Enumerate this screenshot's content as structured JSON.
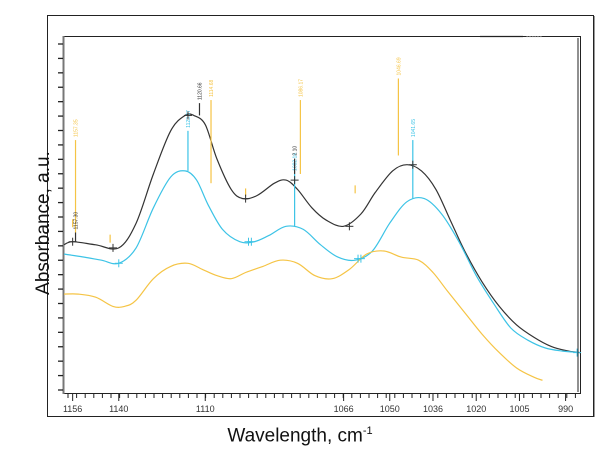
{
  "chart_data": {
    "type": "line",
    "title": "",
    "xlabel": "Wavelength, cm",
    "xlabel_superscript": "-1",
    "ylabel": "Absorbance, a.u.",
    "x_reversed": true,
    "xlim": [
      1163,
      984
    ],
    "ylim": [
      0,
      1
    ],
    "x_ticks": [
      {
        "label": "1156",
        "value": 1160
      },
      {
        "label": "1140",
        "value": 1144
      },
      {
        "label": "1110",
        "value": 1114
      },
      {
        "label": "1066",
        "value": 1066
      },
      {
        "label": "1050",
        "value": 1050
      },
      {
        "label": "1036",
        "value": 1035
      },
      {
        "label": "1020",
        "value": 1020
      },
      {
        "label": "1005",
        "value": 1005
      },
      {
        "label": "990",
        "value": 989
      }
    ],
    "y_tick_count": 25,
    "grid": false,
    "series": [
      {
        "name": "black-spectrum",
        "color": "#333333",
        "x": [
          1163,
          1160,
          1152,
          1144,
          1138,
          1132,
          1126,
          1121,
          1118,
          1114,
          1110,
          1105,
          1101,
          1096,
          1090,
          1086,
          1082,
          1077,
          1072,
          1066,
          1060,
          1055,
          1049,
          1044,
          1039,
          1034,
          1029,
          1024,
          1018,
          1012,
          1006,
          1000,
          994,
          988,
          984
        ],
        "y": [
          0.4,
          0.41,
          0.4,
          0.39,
          0.47,
          0.63,
          0.77,
          0.82,
          0.82,
          0.79,
          0.68,
          0.58,
          0.55,
          0.56,
          0.6,
          0.61,
          0.58,
          0.52,
          0.48,
          0.46,
          0.5,
          0.57,
          0.64,
          0.66,
          0.64,
          0.58,
          0.48,
          0.38,
          0.28,
          0.2,
          0.14,
          0.1,
          0.07,
          0.055,
          0.05
        ]
      },
      {
        "name": "cyan-spectrum",
        "color": "#3cc3e6",
        "x": [
          1163,
          1156,
          1150,
          1144,
          1138,
          1132,
          1126,
          1121,
          1117,
          1113,
          1108,
          1102,
          1097,
          1092,
          1086,
          1080,
          1074,
          1068,
          1062,
          1056,
          1050,
          1044,
          1038,
          1032,
          1026,
          1020,
          1014,
          1008,
          1002,
          996,
          990,
          984
        ],
        "y": [
          0.37,
          0.36,
          0.35,
          0.34,
          0.39,
          0.52,
          0.62,
          0.64,
          0.61,
          0.53,
          0.45,
          0.41,
          0.41,
          0.43,
          0.46,
          0.45,
          0.4,
          0.36,
          0.35,
          0.38,
          0.47,
          0.54,
          0.55,
          0.5,
          0.41,
          0.3,
          0.21,
          0.13,
          0.09,
          0.065,
          0.055,
          0.05
        ]
      },
      {
        "name": "orange-spectrum",
        "color": "#f5c445",
        "x": [
          1163,
          1158,
          1152,
          1146,
          1142,
          1138,
          1132,
          1126,
          1120,
          1115,
          1110,
          1105,
          1100,
          1094,
          1088,
          1082,
          1076,
          1070,
          1064,
          1058,
          1052,
          1046,
          1040,
          1035,
          1030,
          1024,
          1018,
          1012,
          1006,
          1000,
          997
        ],
        "y": [
          0.24,
          0.24,
          0.23,
          0.2,
          0.2,
          0.22,
          0.29,
          0.33,
          0.34,
          0.32,
          0.3,
          0.29,
          0.31,
          0.33,
          0.35,
          0.34,
          0.3,
          0.29,
          0.32,
          0.37,
          0.38,
          0.36,
          0.35,
          0.31,
          0.25,
          0.18,
          0.11,
          0.05,
          0.0,
          -0.03,
          -0.04
        ]
      }
    ],
    "annotations": [
      {
        "text": "1120.66",
        "color": "#333333",
        "x": 1116,
        "y_from": 0.82,
        "y_to": 0.86
      },
      {
        "text": "1114.68",
        "color": "#f5c445",
        "x": 1112,
        "y_from": 0.6,
        "y_to": 0.87
      },
      {
        "text": "1123.97",
        "color": "#3cc3e6",
        "x": 1120,
        "y_from": 0.64,
        "y_to": 0.77
      },
      {
        "text": "1157.35",
        "color": "#f5c445",
        "x": 1159,
        "y_from": 0.44,
        "y_to": 0.74
      },
      {
        "text": "1157.30",
        "color": "#333333",
        "x": 1159,
        "y_from": 0.41,
        "y_to": 0.44
      },
      {
        "text": "1086.17",
        "color": "#f5c445",
        "x": 1081,
        "y_from": 0.63,
        "y_to": 0.87
      },
      {
        "text": "1082.16",
        "color": "#3cc3e6",
        "x": 1083,
        "y_from": 0.46,
        "y_to": 0.63
      },
      {
        "text": "2.10",
        "color": "#333333",
        "x": 1083,
        "y_from": 0.63,
        "y_to": 0.68
      },
      {
        "text": "1046.69",
        "color": "#f5c445",
        "x": 1047,
        "y_from": 0.69,
        "y_to": 0.94
      },
      {
        "text": "1041.65",
        "color": "#3cc3e6",
        "x": 1042,
        "y_from": 0.55,
        "y_to": 0.74
      }
    ],
    "small_marks": [
      {
        "color": "#f5c445",
        "x": 1160,
        "y": 0.47
      },
      {
        "color": "#f5c445",
        "x": 1147,
        "y": 0.42
      },
      {
        "color": "#f5c445",
        "x": 1100,
        "y": 0.57
      },
      {
        "color": "#f5c445",
        "x": 1062,
        "y": 0.58
      }
    ],
    "cross_markers": [
      {
        "color": "#333333",
        "x": 1160,
        "y": 0.41
      },
      {
        "color": "#333333",
        "x": 1146,
        "y": 0.39
      },
      {
        "color": "#333333",
        "x": 1120,
        "y": 0.82
      },
      {
        "color": "#333333",
        "x": 1100,
        "y": 0.55
      },
      {
        "color": "#333333",
        "x": 1083,
        "y": 0.61
      },
      {
        "color": "#333333",
        "x": 1064,
        "y": 0.46
      },
      {
        "color": "#333333",
        "x": 1042,
        "y": 0.66
      },
      {
        "color": "#3cc3e6",
        "x": 1144,
        "y": 0.34
      },
      {
        "color": "#3cc3e6",
        "x": 1099,
        "y": 0.41
      },
      {
        "color": "#3cc3e6",
        "x": 1098,
        "y": 0.41
      },
      {
        "color": "#3cc3e6",
        "x": 1061,
        "y": 0.355
      },
      {
        "color": "#3cc3e6",
        "x": 1060,
        "y": 0.355
      },
      {
        "color": "#3cc3e6",
        "x": 985,
        "y": 0.05
      }
    ],
    "legend_fragment": {
      "text": "------",
      "color": "#bbbbbb"
    }
  }
}
